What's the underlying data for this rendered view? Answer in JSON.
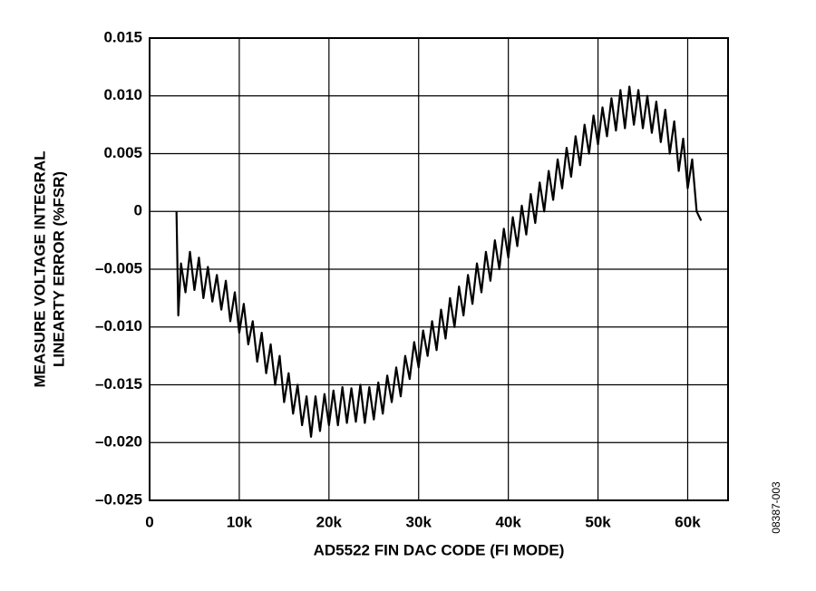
{
  "chart_data": {
    "type": "line",
    "x_label": "AD5522 FIN DAC CODE (FI MODE)",
    "y_label": [
      "MEASURE VOLTAGE INTEGRAL",
      "LINEARTY ERROR (%FSR)"
    ],
    "figure_id": "08387-003",
    "grid": true,
    "xlim": [
      0,
      64500
    ],
    "ylim": [
      -0.025,
      0.015
    ],
    "xticks": [
      0,
      {
        "value": 10000,
        "label": "10k"
      },
      {
        "value": 20000,
        "label": "20k"
      },
      {
        "value": 30000,
        "label": "30k"
      },
      {
        "value": 40000,
        "label": "40k"
      },
      {
        "value": 50000,
        "label": "50k"
      },
      {
        "value": 60000,
        "label": "60k"
      }
    ],
    "yticks": [
      {
        "value": -0.025,
        "label": "–0.025"
      },
      {
        "value": -0.02,
        "label": "–0.020"
      },
      {
        "value": -0.015,
        "label": "–0.015"
      },
      {
        "value": -0.01,
        "label": "–0.010"
      },
      {
        "value": -0.005,
        "label": "–0.005"
      },
      0,
      0.005,
      {
        "value": 0.01,
        "label": "0.010"
      },
      0.015
    ],
    "series": [
      {
        "color": "#000000",
        "x": [
          3000,
          3200,
          3500,
          4000,
          4500,
          5000,
          5500,
          6000,
          6500,
          7000,
          7500,
          8000,
          8500,
          9000,
          9500,
          10000,
          10500,
          11000,
          11500,
          12000,
          12500,
          13000,
          13500,
          14000,
          14500,
          15000,
          15500,
          16000,
          16500,
          17000,
          17500,
          18000,
          18500,
          19000,
          19500,
          20000,
          20500,
          21000,
          21500,
          22000,
          22500,
          23000,
          23500,
          24000,
          24500,
          25000,
          25500,
          26000,
          26500,
          27000,
          27500,
          28000,
          28500,
          29000,
          29500,
          30000,
          30500,
          31000,
          31500,
          32000,
          32500,
          33000,
          33500,
          34000,
          34500,
          35000,
          35500,
          36000,
          36500,
          37000,
          37500,
          38000,
          38500,
          39000,
          39500,
          40000,
          40500,
          41000,
          41500,
          42000,
          42500,
          43000,
          43500,
          44000,
          44500,
          45000,
          45500,
          46000,
          46500,
          47000,
          47500,
          48000,
          48500,
          49000,
          49500,
          50000,
          50500,
          51000,
          51500,
          52000,
          52500,
          53000,
          53500,
          54000,
          54500,
          55000,
          55500,
          56000,
          56500,
          57000,
          57500,
          58000,
          58500,
          59000,
          59500,
          60000,
          60500,
          61000,
          61500
        ],
        "values": [
          0,
          -0.009,
          -0.0045,
          -0.007,
          -0.0035,
          -0.0068,
          -0.004,
          -0.0075,
          -0.0048,
          -0.0078,
          -0.0055,
          -0.0085,
          -0.006,
          -0.0095,
          -0.007,
          -0.0105,
          -0.008,
          -0.0115,
          -0.0095,
          -0.013,
          -0.0105,
          -0.014,
          -0.0115,
          -0.015,
          -0.0125,
          -0.0165,
          -0.014,
          -0.0175,
          -0.015,
          -0.0185,
          -0.016,
          -0.0195,
          -0.016,
          -0.019,
          -0.0158,
          -0.0185,
          -0.0155,
          -0.0185,
          -0.0152,
          -0.0183,
          -0.0153,
          -0.0182,
          -0.015,
          -0.0183,
          -0.0152,
          -0.018,
          -0.0148,
          -0.0175,
          -0.0142,
          -0.0165,
          -0.0135,
          -0.016,
          -0.0125,
          -0.0145,
          -0.0113,
          -0.0135,
          -0.0103,
          -0.0125,
          -0.0095,
          -0.012,
          -0.0085,
          -0.011,
          -0.0075,
          -0.01,
          -0.0065,
          -0.009,
          -0.0055,
          -0.008,
          -0.0045,
          -0.007,
          -0.0035,
          -0.006,
          -0.0025,
          -0.005,
          -0.0015,
          -0.004,
          -0.0005,
          -0.003,
          0.0005,
          -0.002,
          0.0015,
          -0.001,
          0.0025,
          0,
          0.0035,
          0.001,
          0.0045,
          0.002,
          0.0055,
          0.003,
          0.0065,
          0.004,
          0.0075,
          0.005,
          0.0083,
          0.0058,
          0.009,
          0.0065,
          0.0098,
          0.007,
          0.0105,
          0.0072,
          0.0108,
          0.0075,
          0.0105,
          0.0072,
          0.01,
          0.0068,
          0.0095,
          0.006,
          0.0088,
          0.005,
          0.0078,
          0.0035,
          0.0063,
          0.002,
          0.0045,
          0,
          -0.0008
        ]
      }
    ]
  }
}
